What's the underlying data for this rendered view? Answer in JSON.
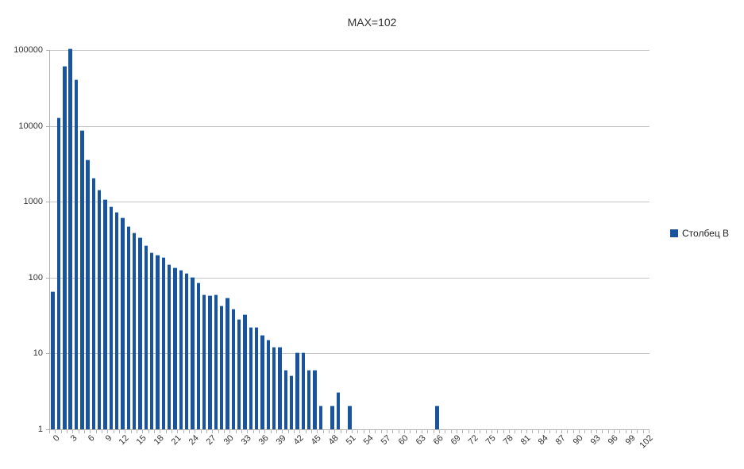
{
  "title": "MAX=102",
  "legend": {
    "series_label": "Столбец B"
  },
  "colors": {
    "bar": "#1a549c",
    "grid": "#c6c6c6",
    "axis": "#b3b3b3",
    "text": "#333333"
  },
  "chart_data": {
    "type": "bar",
    "title": "MAX=102",
    "series_name": "Столбец B",
    "yscale": "log",
    "ylim": [
      1,
      100000
    ],
    "y_tick_labels": [
      "100000",
      "10000",
      "1000",
      "100",
      "10",
      "1"
    ],
    "x_range": [
      0,
      102
    ],
    "x_label_step": 3,
    "x_tick_labels": [
      "0",
      "3",
      "6",
      "9",
      "12",
      "15",
      "18",
      "21",
      "24",
      "27",
      "30",
      "33",
      "36",
      "39",
      "42",
      "45",
      "48",
      "51",
      "54",
      "57",
      "60",
      "63",
      "66",
      "69",
      "72",
      "75",
      "78",
      "81",
      "84",
      "87",
      "90",
      "93",
      "96",
      "99",
      "102"
    ],
    "grid": true,
    "legend_position": "right",
    "bar_color": "#1a549c",
    "values": [
      65,
      12500,
      61000,
      103000,
      40000,
      8600,
      3500,
      2000,
      1400,
      1050,
      850,
      720,
      600,
      470,
      380,
      330,
      260,
      210,
      195,
      180,
      145,
      133,
      125,
      112,
      100,
      85,
      58,
      57,
      59,
      42,
      53,
      38,
      28,
      32,
      22,
      22,
      17,
      15,
      12,
      12,
      6,
      5,
      10,
      10,
      6,
      6,
      2,
      0,
      2,
      3,
      0,
      2,
      0,
      0,
      0,
      0,
      0,
      0,
      0,
      0,
      0,
      0,
      0,
      0,
      0,
      0,
      2,
      0,
      0,
      0,
      0,
      0,
      0,
      0,
      0,
      0,
      0,
      0,
      0,
      0,
      0,
      0,
      0,
      0,
      0,
      0,
      0,
      0,
      0,
      0,
      0,
      0,
      0,
      0,
      0,
      0,
      0,
      0,
      0,
      0,
      0,
      0,
      0
    ]
  }
}
